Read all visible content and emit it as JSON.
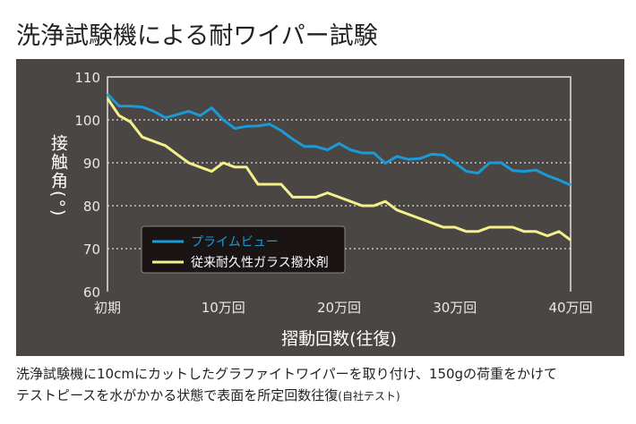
{
  "title": "洗浄試験機による耐ワイパー試験",
  "caption": {
    "line1": "洗浄試験機に10cmにカットしたグラファイトワイパーを取り付け、150gの荷重をかけて",
    "line2": "テストピースを水がかかる状態で表面を所定回数往復",
    "line2_note": "(自社テスト)"
  },
  "chart_data": {
    "type": "line",
    "xlabel": "摺動回数(往復)",
    "ylabel": "接触角(°)",
    "ylim": [
      60,
      110
    ],
    "yticks": [
      60,
      70,
      80,
      90,
      100,
      110
    ],
    "xlim": [
      0,
      40
    ],
    "xticks": [
      {
        "v": 0,
        "label": "初期"
      },
      {
        "v": 10,
        "label": "10万回"
      },
      {
        "v": 20,
        "label": "20万回"
      },
      {
        "v": 30,
        "label": "30万回"
      },
      {
        "v": 40,
        "label": "40万回"
      }
    ],
    "x_unit": "万回",
    "grid": "horizontal dotted",
    "legend_placement": "lower-left",
    "series": [
      {
        "name": "プライムビュー",
        "color": "#1a9ad6",
        "values": [
          106,
          103.2,
          103.2,
          103,
          102,
          100.5,
          101.2,
          102,
          101,
          102.8,
          100,
          98,
          98.5,
          98.6,
          99,
          97.5,
          95.5,
          93.8,
          93.8,
          93,
          94.5,
          93,
          92.3,
          92.3,
          89.9,
          91.5,
          90.8,
          91,
          92,
          91.8,
          90,
          88,
          87.6,
          90,
          90,
          88.2,
          88,
          88.3,
          87,
          86,
          84.8
        ]
      },
      {
        "name": "従来耐久性ガラス撥水剤",
        "color": "#f4f08a",
        "values": [
          105,
          101,
          99.5,
          96,
          95,
          94,
          92,
          90,
          89,
          88,
          90,
          89,
          89,
          85,
          85,
          85,
          82,
          82,
          82,
          83,
          82,
          81,
          80,
          80,
          81,
          79,
          78,
          77,
          76,
          75,
          75,
          74,
          74,
          75,
          75,
          75,
          74,
          74,
          73,
          74,
          72
        ]
      }
    ]
  },
  "colors": {
    "panel": "#4a4644",
    "legend_bg": "#1a1514"
  }
}
